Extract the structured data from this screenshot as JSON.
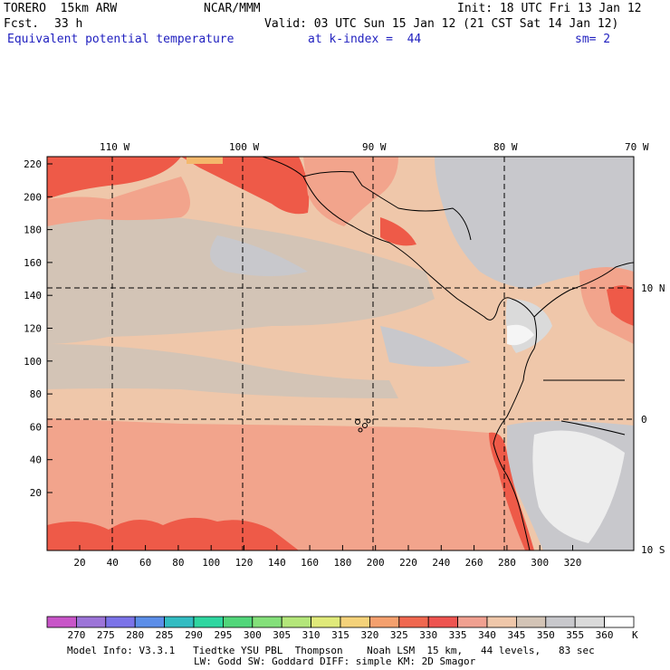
{
  "header": {
    "model": "TORERO  15km ARW",
    "center": "NCAR/MMM",
    "init": "Init: 18 UTC Fri 13 Jan 12",
    "fcst_label": "Fcst.",
    "fcst_value": "33 h",
    "valid": "Valid: 03 UTC Sun 15 Jan 12 (21 CST Sat 14 Jan 12)",
    "field": "Equivalent potential temperature",
    "level": "at k-index =  44",
    "smoothing": "sm= 2"
  },
  "map": {
    "longitude_labels": [
      "110 W",
      "100 W",
      "90 W",
      "80 W",
      "70 W"
    ],
    "latitude_labels": [
      "10 N",
      "0",
      "10 S"
    ],
    "y_ticks": [
      "220",
      "200",
      "180",
      "160",
      "140",
      "120",
      "100",
      "80",
      "60",
      "40",
      "20"
    ],
    "x_ticks": [
      "20",
      "40",
      "60",
      "80",
      "100",
      "120",
      "140",
      "160",
      "180",
      "200",
      "220",
      "240",
      "260",
      "280",
      "300",
      "320"
    ]
  },
  "colorbar": {
    "labels": [
      "270",
      "275",
      "280",
      "285",
      "290",
      "295",
      "300",
      "305",
      "310",
      "315",
      "320",
      "325",
      "330",
      "335",
      "340",
      "345",
      "350",
      "355",
      "360"
    ],
    "unit": "K",
    "colors": [
      "#c855c8",
      "#9c74d8",
      "#7b73e8",
      "#5c8ee8",
      "#33bcc2",
      "#2fd6a0",
      "#52d67a",
      "#84e07a",
      "#b4e67a",
      "#e0ea7a",
      "#f4d27a",
      "#f4a06e",
      "#f06850",
      "#ee5450",
      "#f0a090",
      "#efc7aa",
      "#d3c4b6",
      "#c8c8cc",
      "#dadada",
      "#ffffff"
    ]
  },
  "footer": {
    "line1": "Model Info: V3.3.1   Tiedtke YSU PBL  Thompson    Noah LSM  15 km,   44 levels,   83 sec",
    "line2": "LW: Godd SW: Goddard DIFF: simple KM: 2D Smagor"
  }
}
